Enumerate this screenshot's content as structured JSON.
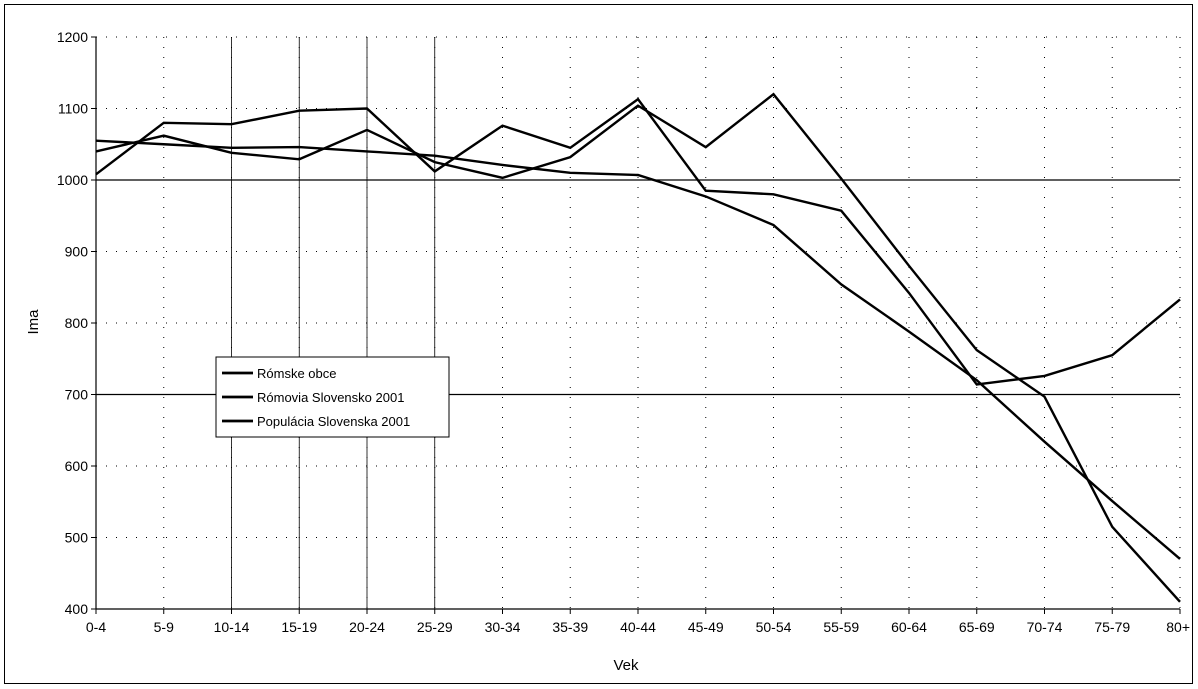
{
  "chart_data": {
    "type": "line",
    "title": "",
    "xlabel": "Vek",
    "ylabel": "Ima",
    "ylim": [
      400,
      1200
    ],
    "yticks": [
      "400",
      "500",
      "600",
      "700",
      "800",
      "900",
      "1000",
      "1100",
      "1200"
    ],
    "categories": [
      "0-4",
      "5-9",
      "10-14",
      "15-19",
      "20-24",
      "25-29",
      "30-34",
      "35-39",
      "40-44",
      "45-49",
      "50-54",
      "55-59",
      "60-64",
      "65-69",
      "70-74",
      "75-79",
      "80+"
    ],
    "series": [
      {
        "name": "Rómske obce",
        "values": [
          1008,
          1080,
          1078,
          1097,
          1100,
          1012,
          1076,
          1045,
          1113,
          985,
          980,
          957,
          842,
          714,
          726,
          755,
          833
        ]
      },
      {
        "name": "Rómovia Slovensko 2001",
        "values": [
          1040,
          1062,
          1038,
          1029,
          1070,
          1025,
          1003,
          1032,
          1104,
          1046,
          1120,
          1002,
          880,
          762,
          697,
          515,
          410
        ]
      },
      {
        "name": "Populácia Slovenska 2001",
        "values": [
          1055,
          1050,
          1045,
          1046,
          1040,
          1034,
          1021,
          1010,
          1007,
          977,
          937,
          854,
          788,
          720,
          634,
          551,
          470
        ]
      }
    ],
    "reference_line": 1000,
    "legend_position": "left",
    "grid": "dotted major gridlines",
    "colors": {
      "line": "#000000",
      "grid": "#000000",
      "background": "#ffffff"
    }
  }
}
